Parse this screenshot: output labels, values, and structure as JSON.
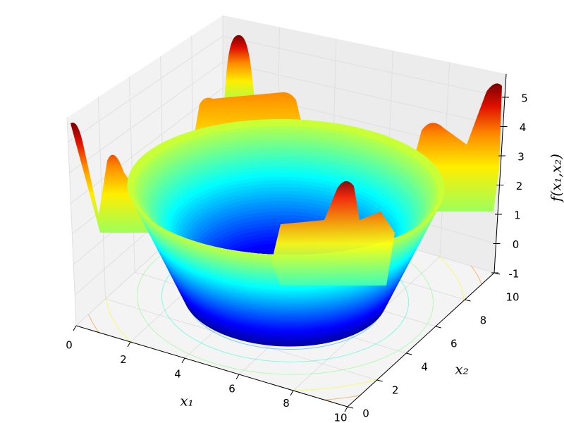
{
  "chart_data": {
    "type": "surface",
    "xlabel": "x₁",
    "ylabel": "x₂",
    "zlabel": "f(x₁,x₂)",
    "xlim": [
      0,
      10
    ],
    "ylim": [
      0,
      10
    ],
    "zlim": [
      -1,
      5.8
    ],
    "xticks": [
      0,
      2,
      4,
      6,
      8,
      10
    ],
    "yticks": [
      0,
      2,
      4,
      6,
      8,
      10
    ],
    "zticks": [
      -1,
      0,
      1,
      2,
      3,
      4,
      5
    ],
    "colormap": "jet",
    "grid": true
  }
}
